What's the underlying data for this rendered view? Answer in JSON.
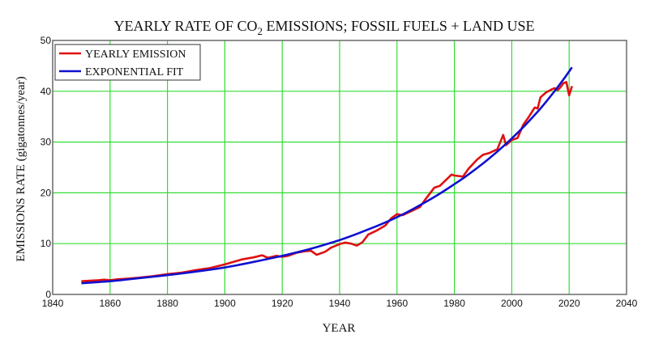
{
  "chart_data": {
    "type": "line",
    "title": "YEARLY RATE OF CO",
    "title_subscript": "2",
    "title_suffix": " EMISSIONS; FOSSIL FUELS + LAND USE",
    "xlabel": "YEAR",
    "ylabel": "EMISSIONS RATE (gigatonnes/year)",
    "xlim": [
      1840,
      2040
    ],
    "ylim": [
      0,
      50
    ],
    "xticks": [
      1840,
      1860,
      1880,
      1900,
      1920,
      1940,
      1960,
      1980,
      2000,
      2020,
      2040
    ],
    "yticks": [
      0,
      10,
      20,
      30,
      40,
      50
    ],
    "grid": true,
    "grid_color": "#33dd33",
    "legend_position": "top-left",
    "series": [
      {
        "name": "YEARLY EMISSION",
        "color": "#e01010",
        "x": [
          1850,
          1853,
          1856,
          1858,
          1860,
          1863,
          1866,
          1870,
          1875,
          1880,
          1885,
          1890,
          1895,
          1900,
          1903,
          1906,
          1910,
          1913,
          1915,
          1918,
          1920,
          1922,
          1925,
          1928,
          1930,
          1932,
          1935,
          1937,
          1940,
          1942,
          1944,
          1946,
          1948,
          1950,
          1953,
          1956,
          1958,
          1960,
          1962,
          1965,
          1968,
          1970,
          1973,
          1975,
          1977,
          1979,
          1980,
          1983,
          1985,
          1988,
          1990,
          1992,
          1995,
          1997,
          1998,
          2000,
          2002,
          2004,
          2006,
          2008,
          2009,
          2010,
          2012,
          2014,
          2015,
          2016,
          2017,
          2018,
          2019,
          2020,
          2021
        ],
        "y": [
          2.6,
          2.7,
          2.8,
          2.9,
          2.8,
          3.0,
          3.1,
          3.3,
          3.6,
          4.0,
          4.3,
          4.8,
          5.2,
          5.9,
          6.4,
          6.9,
          7.3,
          7.7,
          7.2,
          7.6,
          7.4,
          7.6,
          8.2,
          8.5,
          8.6,
          7.8,
          8.4,
          9.2,
          9.9,
          10.2,
          10.0,
          9.6,
          10.3,
          11.8,
          12.6,
          13.6,
          15.0,
          15.8,
          15.6,
          16.4,
          17.2,
          18.8,
          21.0,
          21.4,
          22.5,
          23.6,
          23.4,
          23.2,
          24.8,
          26.6,
          27.5,
          27.8,
          28.6,
          31.4,
          29.4,
          30.4,
          30.8,
          33.4,
          35.0,
          36.8,
          36.6,
          38.8,
          39.8,
          40.4,
          40.6,
          40.2,
          40.8,
          41.6,
          41.8,
          39.2,
          41.0
        ]
      },
      {
        "name": "EXPONENTIAL FIT",
        "color": "#1010d0",
        "x": [
          1850,
          1860,
          1870,
          1880,
          1890,
          1900,
          1910,
          1920,
          1930,
          1940,
          1950,
          1960,
          1970,
          1980,
          1990,
          2000,
          2010,
          2021
        ],
        "y": [
          2.2,
          2.6,
          3.2,
          3.8,
          4.5,
          5.3,
          6.4,
          7.6,
          9.0,
          10.7,
          12.8,
          15.2,
          18.2,
          21.7,
          25.8,
          30.7,
          36.6,
          44.7
        ]
      }
    ]
  }
}
